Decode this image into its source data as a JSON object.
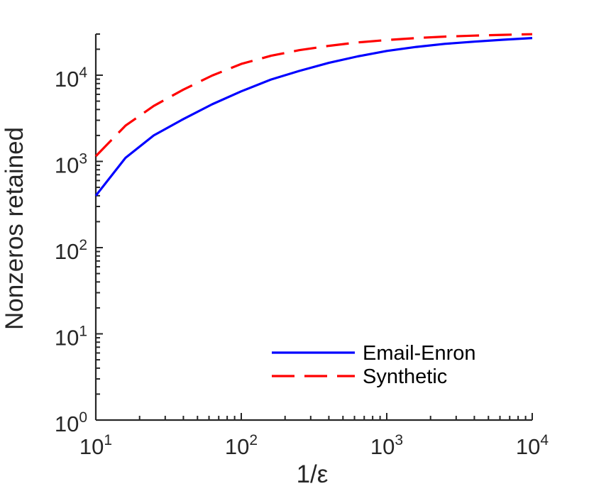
{
  "chart_data": {
    "type": "line",
    "x_scale": "log",
    "y_scale": "log",
    "xlim": [
      10,
      10000
    ],
    "ylim": [
      1,
      30000
    ],
    "xlabel": "1/ε",
    "ylabel": "Nonzeros retained",
    "xticks": [
      {
        "value": 10,
        "base": "10",
        "exp": "1"
      },
      {
        "value": 100,
        "base": "10",
        "exp": "2"
      },
      {
        "value": 1000,
        "base": "10",
        "exp": "3"
      },
      {
        "value": 10000,
        "base": "10",
        "exp": "4"
      }
    ],
    "yticks": [
      {
        "value": 1,
        "base": "10",
        "exp": "0"
      },
      {
        "value": 10,
        "base": "10",
        "exp": "1"
      },
      {
        "value": 100,
        "base": "10",
        "exp": "2"
      },
      {
        "value": 1000,
        "base": "10",
        "exp": "3"
      },
      {
        "value": 10000,
        "base": "10",
        "exp": "4"
      }
    ],
    "grid": false,
    "legend_position": "bottom-right",
    "series": [
      {
        "name": "Email-Enron",
        "color": "#0000ff",
        "dash": "solid",
        "points": [
          [
            10,
            400
          ],
          [
            16,
            1100
          ],
          [
            25,
            2000
          ],
          [
            40,
            3100
          ],
          [
            63,
            4600
          ],
          [
            100,
            6500
          ],
          [
            160,
            8900
          ],
          [
            250,
            11200
          ],
          [
            400,
            13900
          ],
          [
            630,
            16500
          ],
          [
            1000,
            19100
          ],
          [
            1600,
            21300
          ],
          [
            2500,
            23100
          ],
          [
            4000,
            24500
          ],
          [
            6300,
            25800
          ],
          [
            10000,
            27000
          ]
        ]
      },
      {
        "name": "Synthetic",
        "color": "#ff0000",
        "dash": "dashed",
        "points": [
          [
            10,
            1150
          ],
          [
            16,
            2600
          ],
          [
            25,
            4400
          ],
          [
            40,
            6800
          ],
          [
            63,
            9900
          ],
          [
            100,
            13500
          ],
          [
            160,
            16800
          ],
          [
            250,
            19500
          ],
          [
            400,
            21900
          ],
          [
            630,
            24000
          ],
          [
            1000,
            25600
          ],
          [
            1600,
            27000
          ],
          [
            2500,
            28000
          ],
          [
            4000,
            28800
          ],
          [
            6300,
            29400
          ],
          [
            10000,
            29900
          ]
        ]
      }
    ]
  }
}
